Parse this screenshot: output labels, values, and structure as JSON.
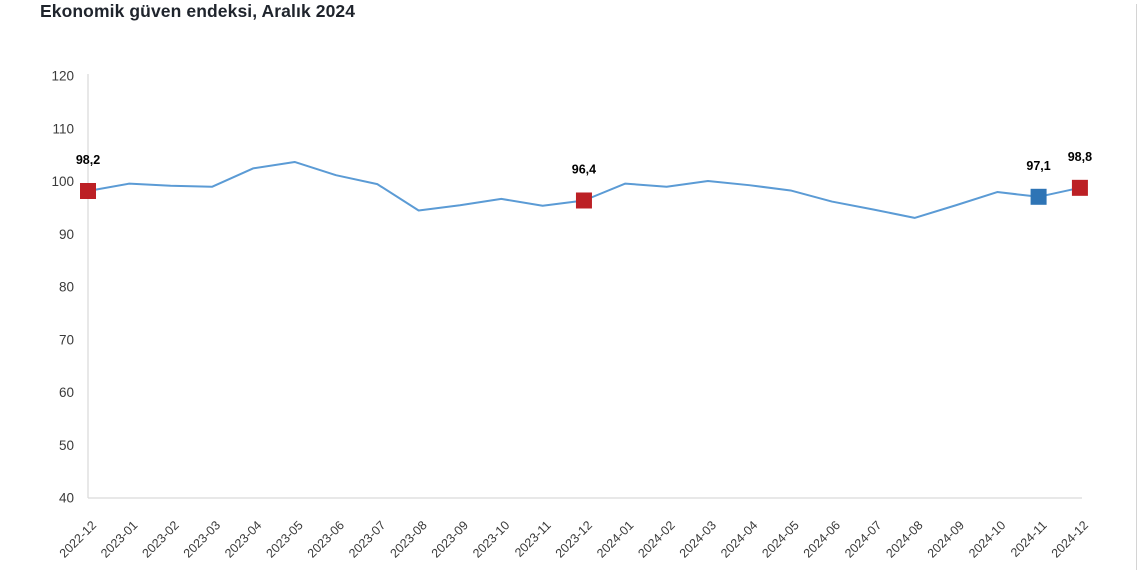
{
  "chart_data": {
    "type": "line",
    "title": "Ekonomik güven endeksi, Aralık 2024",
    "series_name": "Ekonomik güven endeksi",
    "categories": [
      "2022-12",
      "2023-01",
      "2023-02",
      "2023-03",
      "2023-04",
      "2023-05",
      "2023-06",
      "2023-07",
      "2023-08",
      "2023-09",
      "2023-10",
      "2023-11",
      "2023-12",
      "2024-01",
      "2024-02",
      "2024-03",
      "2024-04",
      "2024-05",
      "2024-06",
      "2024-07",
      "2024-08",
      "2024-09",
      "2024-10",
      "2024-11",
      "2024-12"
    ],
    "values": [
      98.2,
      99.6,
      99.2,
      99.0,
      102.5,
      103.7,
      101.2,
      99.5,
      94.5,
      95.5,
      96.7,
      95.4,
      96.4,
      99.6,
      99.0,
      100.1,
      99.3,
      98.3,
      96.2,
      94.7,
      93.1,
      95.5,
      98.0,
      97.1,
      98.8
    ],
    "ylim": [
      40,
      120
    ],
    "yticks": [
      120,
      110,
      100,
      90,
      80,
      70,
      60,
      50,
      40
    ],
    "grid": false,
    "legend": false,
    "highlight_markers": [
      {
        "category": "2022-12",
        "index": 0,
        "label": "98,2",
        "color": "#bc2025",
        "shape": "square"
      },
      {
        "category": "2023-12",
        "index": 12,
        "label": "96,4",
        "color": "#bc2025",
        "shape": "square"
      },
      {
        "category": "2024-11",
        "index": 23,
        "label": "97,1",
        "color": "#2e74b5",
        "shape": "square"
      },
      {
        "category": "2024-12",
        "index": 24,
        "label": "98,8",
        "color": "#bc2025",
        "shape": "square"
      }
    ],
    "colors": {
      "line": "#5b9bd5",
      "marker_red": "#bc2025",
      "marker_blue": "#2e74b5",
      "axis_line": "#d9d9d9",
      "tick_label": "#3a3a3a",
      "value_label": "#000000",
      "title": "#1f242c"
    }
  }
}
